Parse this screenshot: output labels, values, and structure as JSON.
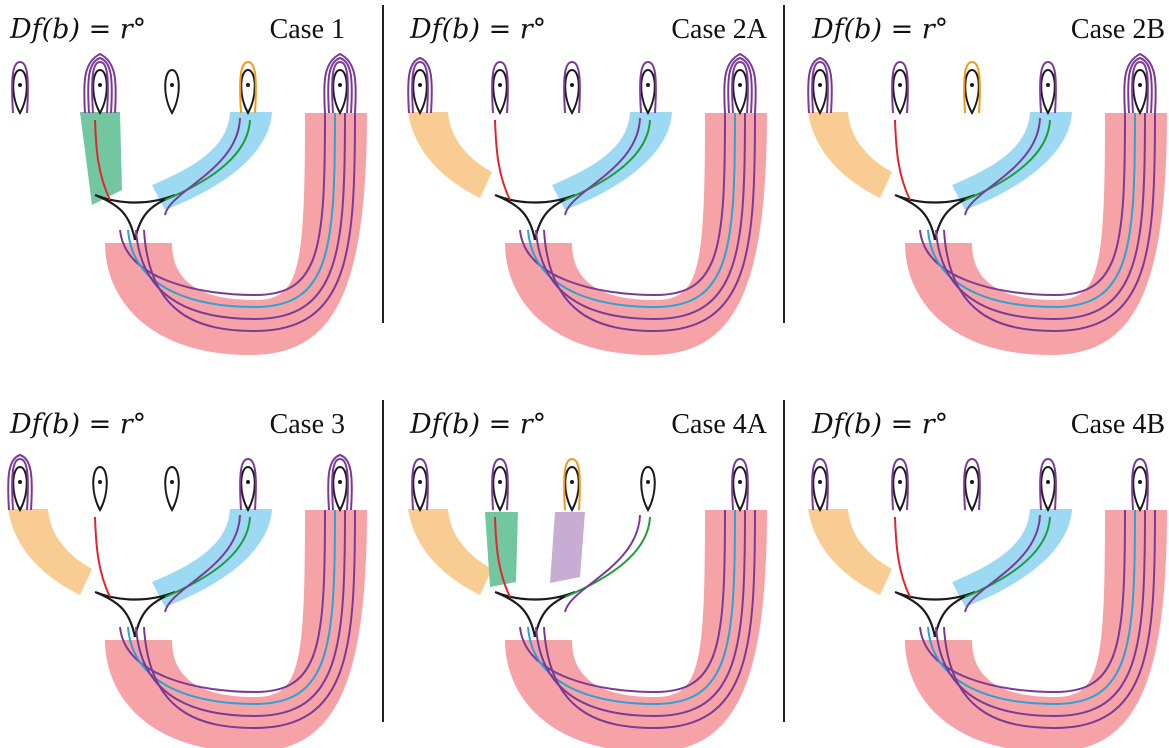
{
  "formula": "Df(b) = r°",
  "cases": [
    {
      "label": "Case 1",
      "loops": [
        1,
        3,
        0,
        1,
        3
      ],
      "orange_on": 3,
      "left_band": "green",
      "mid_band": "blue",
      "lower_case": false
    },
    {
      "label": "Case 2A",
      "loops": [
        2,
        1,
        1,
        1,
        3
      ],
      "orange_on": -1,
      "left_band": "orange",
      "mid_band": "blue",
      "lower_case": false
    },
    {
      "label": "Case 2B",
      "loops": [
        2,
        1,
        1,
        1,
        3
      ],
      "orange_on": 2,
      "left_band": "orange",
      "mid_band": "blue",
      "lower_case": false
    },
    {
      "label": "Case 3",
      "loops": [
        2,
        0,
        0,
        1,
        2
      ],
      "orange_on": -1,
      "left_band": "orange",
      "mid_band": "blue",
      "lower_case": true
    },
    {
      "label": "Case 4A",
      "loops": [
        1,
        1,
        1,
        0,
        1
      ],
      "orange_on": 2,
      "left_band": "orange",
      "mid_band": "green",
      "lower_case": true
    },
    {
      "label": "Case 4B",
      "loops": [
        1,
        1,
        1,
        1,
        1
      ],
      "orange_on": -1,
      "left_band": "orange",
      "mid_band": "blue",
      "lower_case": true
    }
  ],
  "colors": {
    "pink": "#f6a3a8",
    "blue_band": "#9dd9f3",
    "green_band": "#72c7a0",
    "orange_band": "#f9cc94",
    "lilac_band": "#c7acd3",
    "purple": "#7a3a96",
    "cyan": "#2ea1d4",
    "red": "#e0262b",
    "green": "#1f9a3c",
    "orange": "#f29a1c",
    "black": "#1a1a1a"
  }
}
